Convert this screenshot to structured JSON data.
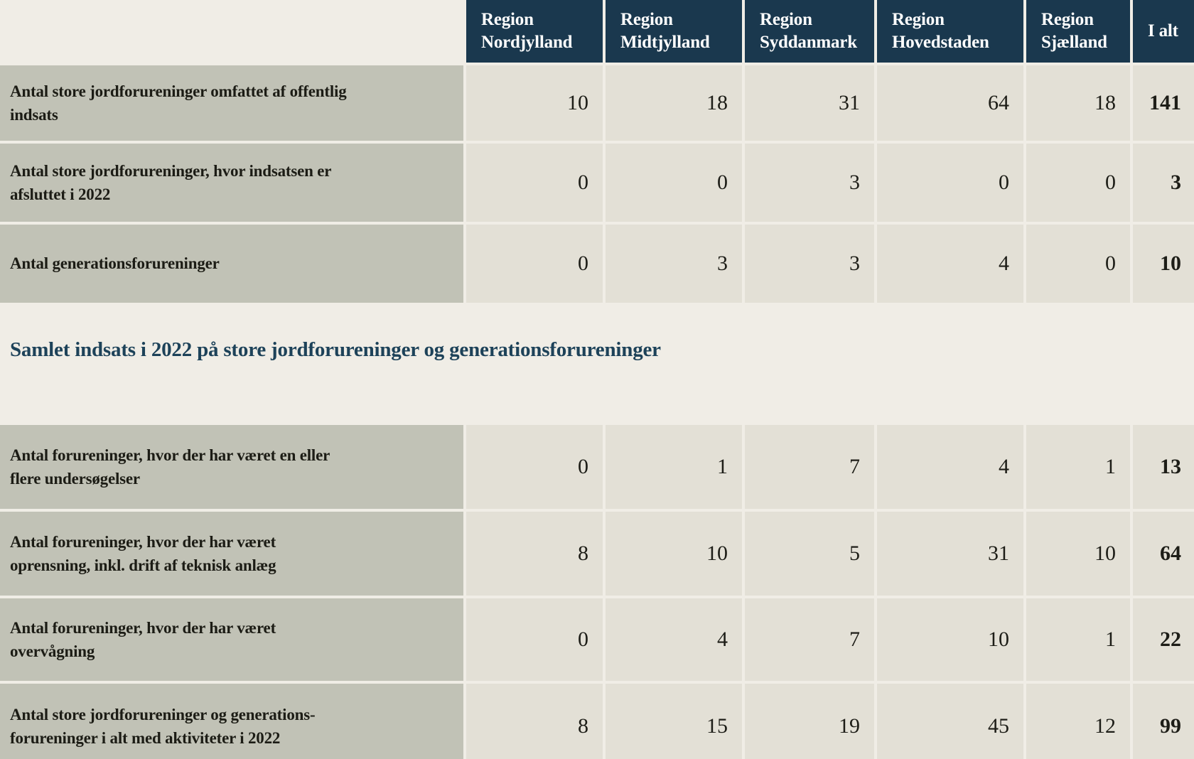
{
  "chart_data": {
    "type": "table",
    "columns": [
      "Region\nNordjylland",
      "Region\nMidtjylland",
      "Region\nSyddanmark",
      "Region\nHovedstaden",
      "Region\nSjælland",
      "I alt"
    ],
    "rows": [
      {
        "label": "Antal store jordforureninger omfattet af offentlig\nindsats",
        "values": [
          10,
          18,
          31,
          64,
          18
        ],
        "total": 141
      },
      {
        "label": "Antal store jordforureninger, hvor indsatsen er\nafsluttet i 2022",
        "values": [
          0,
          0,
          3,
          0,
          0
        ],
        "total": 3
      },
      {
        "label": "Antal generationsforureninger",
        "values": [
          0,
          3,
          3,
          4,
          0
        ],
        "total": 10
      },
      {
        "label": "Antal forureninger, hvor der har været en eller\nflere undersøgelser",
        "values": [
          0,
          1,
          7,
          4,
          1
        ],
        "total": 13
      },
      {
        "label": "Antal forureninger, hvor der har været\noprensning, inkl. drift af teknisk anlæg",
        "values": [
          8,
          10,
          5,
          31,
          10
        ],
        "total": 64
      },
      {
        "label": "Antal forureninger, hvor der har været\novervågning",
        "values": [
          0,
          4,
          7,
          10,
          1
        ],
        "total": 22
      },
      {
        "label": "Antal store jordforureninger og generations-\nforureninger i alt med aktiviteter i 2022",
        "values": [
          8,
          15,
          19,
          45,
          12
        ],
        "total": 99
      }
    ],
    "section_heading": "Samlet indsats i 2022 på store jordforureninger og generationsforureninger",
    "section_heading_position": "between row 3 and row 4",
    "layout": {
      "first_column": "row labels",
      "last_column": "totals (bold)",
      "grid": "cells separated by light background-colored gaps"
    },
    "colors": {
      "header_bg": "#1a384e",
      "header_text": "#ffffff",
      "row_label_bg": "#c1c2b6",
      "value_cell_bg": "#e3e0d6",
      "page_bg": "#f0ede6",
      "section_heading_text": "#1d4259",
      "body_text": "#1d1d17"
    }
  }
}
